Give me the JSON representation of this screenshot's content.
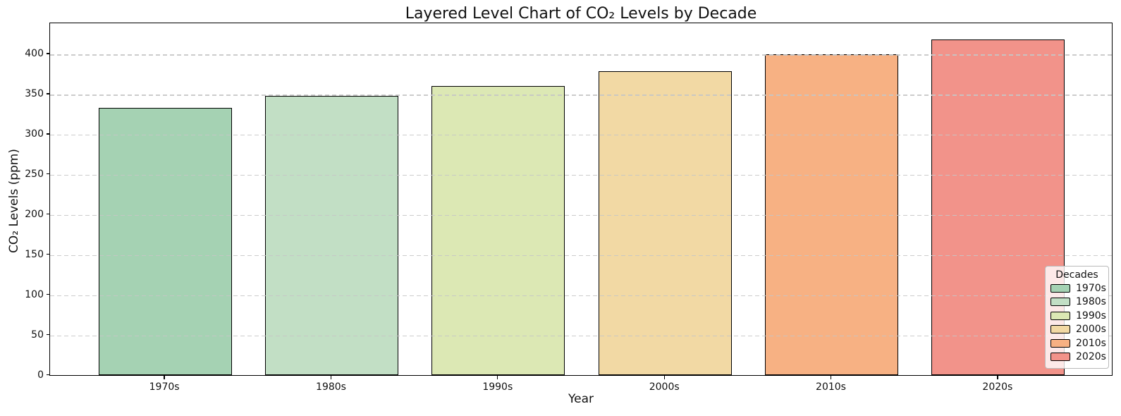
{
  "chart_data": {
    "type": "bar",
    "title": "Layered Level Chart of CO₂ Levels by Decade",
    "xlabel": "Year",
    "ylabel": "CO₂ Levels (ppm)",
    "categories": [
      "1970s",
      "1980s",
      "1990s",
      "2000s",
      "2010s",
      "2020s"
    ],
    "values": [
      333,
      348,
      360,
      379,
      400,
      418
    ],
    "bar_colors": [
      "#a5d2b3",
      "#c2dfc5",
      "#dce8b4",
      "#f2d9a4",
      "#f7b183",
      "#f2938a"
    ],
    "bar_edge_color": "#000000",
    "yticks": [
      0,
      50,
      100,
      150,
      200,
      250,
      300,
      350,
      400
    ],
    "ylim": [
      0,
      440
    ],
    "grid": "horizontal dashed",
    "grid_color": "#c6c6c6",
    "legend": {
      "title": "Decades",
      "position": "lower right",
      "entries": [
        "1970s",
        "1980s",
        "1990s",
        "2000s",
        "2010s",
        "2020s"
      ]
    }
  }
}
